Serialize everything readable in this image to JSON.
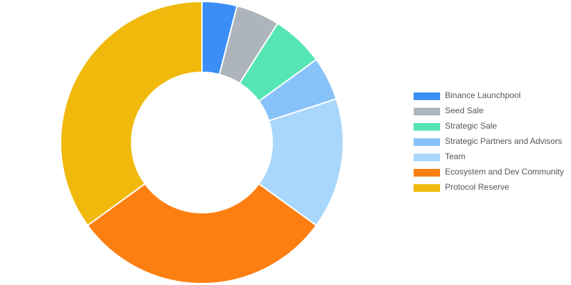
{
  "chart_data": {
    "type": "donut",
    "categories": [
      "Binance Launchpool",
      "Seed Sale",
      "Strategic Sale",
      "Strategic Partners and Advisors",
      "Team",
      "Ecosystem and Dev Community",
      "Protocol Reserve"
    ],
    "values": [
      4,
      5,
      6,
      5,
      15,
      30,
      35
    ],
    "colors": [
      "#3a8ef6",
      "#aeb4bb",
      "#55e6b4",
      "#88c2fa",
      "#a9d7fb",
      "#fd7f11",
      "#f0b90b"
    ],
    "legend": "right"
  }
}
